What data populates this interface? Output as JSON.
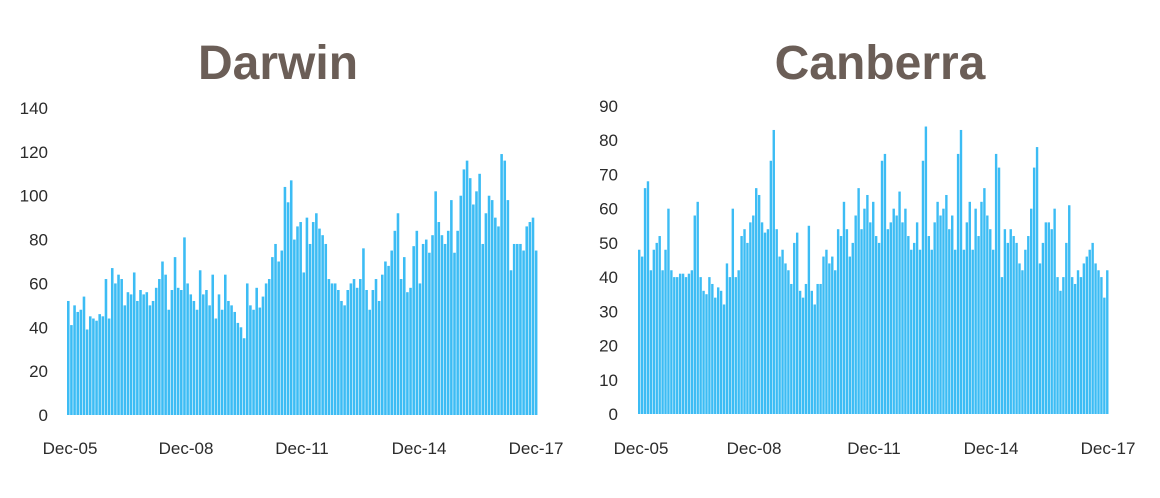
{
  "chart_data": [
    {
      "type": "bar",
      "title": "Darwin",
      "xlabel": "",
      "ylabel": "",
      "ylim": [
        0,
        140
      ],
      "yticks": [
        0,
        20,
        40,
        60,
        80,
        100,
        120,
        140
      ],
      "xtick_labels": [
        "Dec-05",
        "Dec-08",
        "Dec-11",
        "Dec-14",
        "Dec-17"
      ],
      "bar_color": "#3cbcf4",
      "grid": false,
      "legend": "none",
      "values": [
        52,
        41,
        50,
        47,
        48,
        54,
        39,
        45,
        44,
        43,
        46,
        45,
        62,
        44,
        67,
        60,
        64,
        62,
        50,
        56,
        55,
        65,
        52,
        57,
        55,
        56,
        50,
        52,
        58,
        62,
        70,
        64,
        48,
        57,
        72,
        58,
        57,
        81,
        60,
        55,
        52,
        48,
        66,
        55,
        57,
        50,
        64,
        44,
        55,
        48,
        64,
        52,
        50,
        47,
        42,
        40,
        35,
        60,
        50,
        48,
        58,
        49,
        54,
        60,
        62,
        72,
        78,
        70,
        75,
        104,
        97,
        107,
        80,
        86,
        88,
        65,
        90,
        78,
        88,
        92,
        85,
        82,
        78,
        62,
        60,
        60,
        57,
        52,
        50,
        57,
        60,
        62,
        58,
        62,
        76,
        57,
        48,
        57,
        62,
        52,
        64,
        70,
        68,
        75,
        84,
        92,
        62,
        72,
        56,
        58,
        77,
        84,
        60,
        78,
        80,
        74,
        82,
        102,
        88,
        82,
        78,
        84,
        98,
        74,
        84,
        100,
        112,
        116,
        108,
        96,
        102,
        110,
        78,
        92,
        100,
        98,
        90,
        86,
        119,
        116,
        98,
        66,
        78,
        78,
        78,
        75,
        86,
        88,
        90,
        75
      ]
    },
    {
      "type": "bar",
      "title": "Canberra",
      "xlabel": "",
      "ylabel": "",
      "ylim": [
        0,
        90
      ],
      "yticks": [
        0,
        10,
        20,
        30,
        40,
        50,
        60,
        70,
        80,
        90
      ],
      "xtick_labels": [
        "Dec-05",
        "Dec-08",
        "Dec-11",
        "Dec-14",
        "Dec-17"
      ],
      "bar_color": "#3cbcf4",
      "grid": false,
      "legend": "none",
      "values": [
        48,
        46,
        66,
        68,
        42,
        48,
        50,
        52,
        42,
        48,
        60,
        42,
        40,
        40,
        41,
        41,
        40,
        41,
        42,
        58,
        62,
        40,
        36,
        35,
        40,
        38,
        34,
        37,
        36,
        32,
        44,
        40,
        60,
        40,
        42,
        52,
        54,
        50,
        56,
        58,
        66,
        64,
        56,
        53,
        54,
        74,
        83,
        54,
        46,
        48,
        44,
        42,
        38,
        50,
        53,
        36,
        34,
        38,
        55,
        36,
        32,
        38,
        38,
        46,
        48,
        44,
        46,
        42,
        54,
        52,
        62,
        54,
        46,
        50,
        58,
        66,
        54,
        60,
        64,
        56,
        62,
        52,
        50,
        74,
        76,
        54,
        56,
        60,
        58,
        65,
        56,
        60,
        52,
        48,
        50,
        56,
        48,
        74,
        84,
        52,
        48,
        56,
        62,
        58,
        60,
        64,
        54,
        58,
        48,
        76,
        83,
        48,
        56,
        62,
        48,
        60,
        52,
        62,
        66,
        58,
        54,
        48,
        76,
        72,
        40,
        54,
        50,
        54,
        52,
        50,
        44,
        42,
        48,
        52,
        60,
        72,
        78,
        44,
        50,
        56,
        56,
        54,
        60,
        40,
        36,
        40,
        50,
        61,
        40,
        38,
        42,
        40,
        44,
        46,
        48,
        50,
        44,
        42,
        40,
        34,
        42
      ]
    }
  ]
}
